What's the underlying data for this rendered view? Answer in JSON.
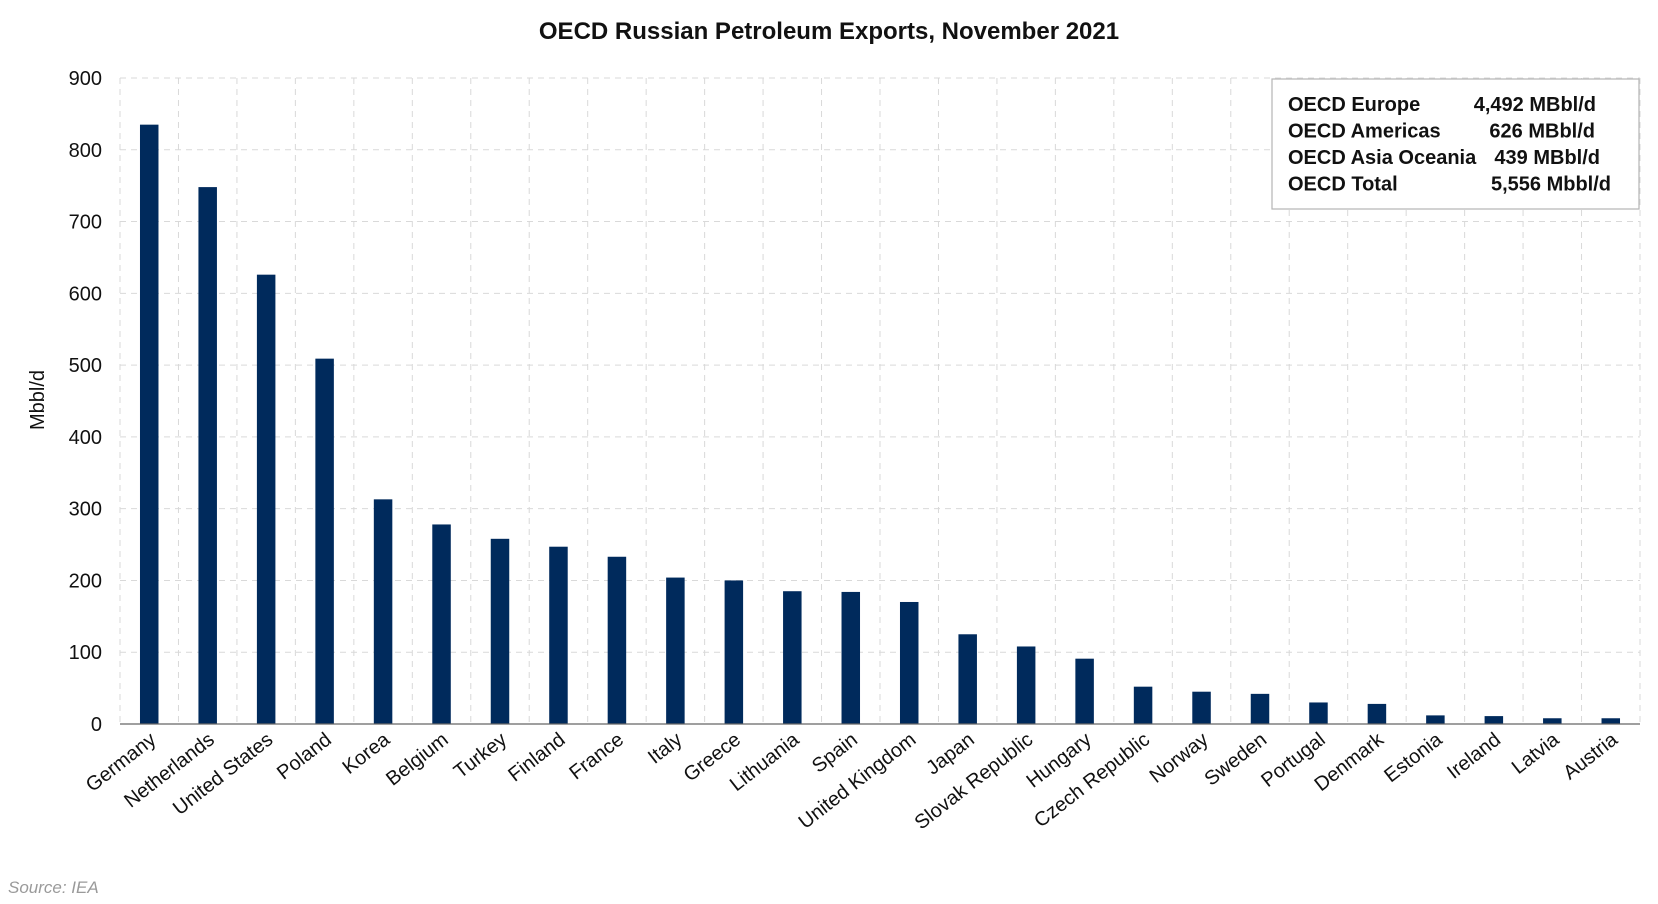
{
  "chart_data": {
    "type": "bar",
    "title": "OECD Russian Petroleum Exports, November 2021",
    "xlabel": "",
    "ylabel": "Mbbl/d",
    "ylim": [
      0,
      900
    ],
    "yticks": [
      0,
      100,
      200,
      300,
      400,
      500,
      600,
      700,
      800,
      900
    ],
    "grid": true,
    "bar_color": "#002a5c",
    "categories": [
      "Germany",
      "Netherlands",
      "United States",
      "Poland",
      "Korea",
      "Belgium",
      "Turkey",
      "Finland",
      "France",
      "Italy",
      "Greece",
      "Lithuania",
      "Spain",
      "United Kingdom",
      "Japan",
      "Slovak Republic",
      "Hungary",
      "Czech Republic",
      "Norway",
      "Sweden",
      "Portugal",
      "Denmark",
      "Estonia",
      "Ireland",
      "Latvia",
      "Austria"
    ],
    "values": [
      835,
      748,
      626,
      509,
      313,
      278,
      258,
      247,
      233,
      204,
      200,
      185,
      184,
      170,
      125,
      108,
      91,
      52,
      45,
      42,
      30,
      28,
      12,
      11,
      8,
      8
    ],
    "legend_position": "top-right",
    "summary": [
      {
        "label": "OECD Europe",
        "value": "4,492 MBbl/d"
      },
      {
        "label": "OECD Americas",
        "value": "626 MBbl/d"
      },
      {
        "label": "OECD Asia Oceania",
        "value": "439 MBbl/d"
      },
      {
        "label": "OECD Total",
        "value": "5,556 Mbbl/d"
      }
    ]
  },
  "source": "Source: IEA"
}
